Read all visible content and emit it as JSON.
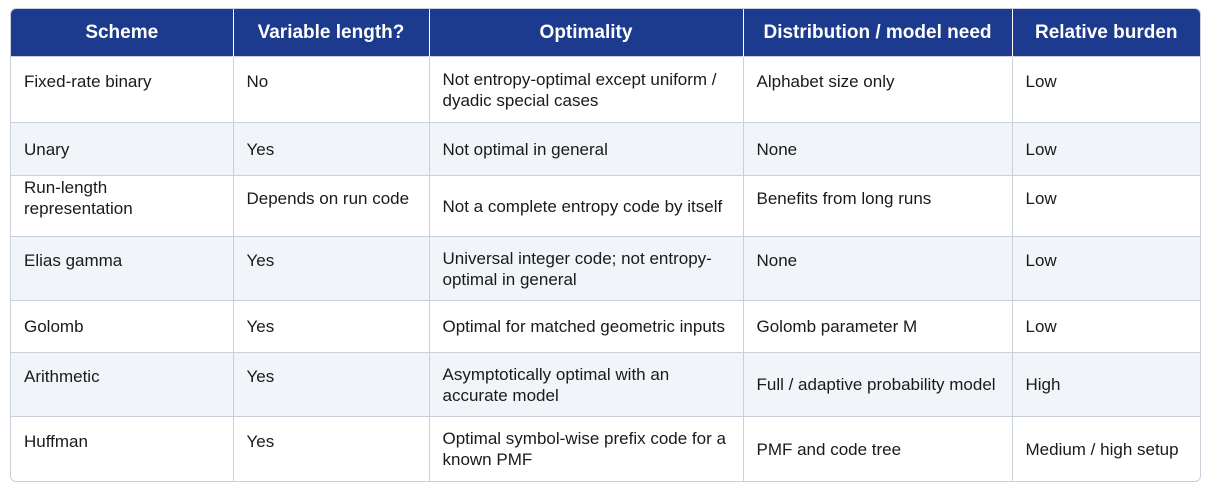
{
  "table": {
    "headers": [
      "Scheme",
      "Variable length?",
      "Optimality",
      "Distribution / model need",
      "Relative burden"
    ],
    "rows": [
      {
        "scheme": "Fixed-rate binary",
        "variable": "No",
        "optimality": "Not entropy-optimal except uniform / dyadic special cases",
        "model": "Alphabet size only",
        "burden": "Low"
      },
      {
        "scheme": "Unary",
        "variable": "Yes",
        "optimality": "Not optimal in general",
        "model": "None",
        "burden": "Low"
      },
      {
        "scheme": "Run-length representation",
        "variable": "Depends on run code",
        "optimality": "Not a complete entropy code by itself",
        "model": "Benefits from long runs",
        "burden": "Low"
      },
      {
        "scheme": "Elias gamma",
        "variable": "Yes",
        "optimality": "Universal integer code; not entropy-optimal in general",
        "model": "None",
        "burden": "Low"
      },
      {
        "scheme": "Golomb",
        "variable": "Yes",
        "optimality": "Optimal for matched geometric inputs",
        "model": "Golomb parameter M",
        "burden": "Low"
      },
      {
        "scheme": "Arithmetic",
        "variable": "Yes",
        "optimality": "Asymptotically optimal with an accurate model",
        "model": "Full / adaptive probability model",
        "burden": "High"
      },
      {
        "scheme": "Huffman",
        "variable": "Yes",
        "optimality": "Optimal symbol-wise prefix code for a known PMF",
        "model": "PMF and code tree",
        "burden": "Medium / high setup"
      }
    ]
  }
}
